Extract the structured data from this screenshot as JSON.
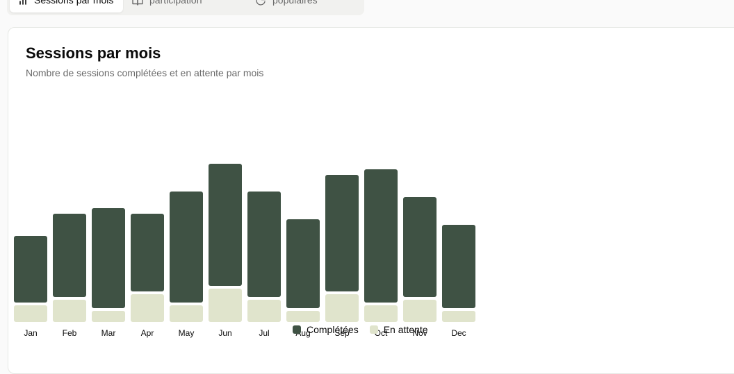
{
  "tabs": [
    {
      "label": "Sessions par mois",
      "icon": "bar-chart-icon",
      "active": true
    },
    {
      "label": "Taux de participation",
      "icon": "book-open-icon",
      "active": false
    },
    {
      "label": "Thèmes populaires",
      "icon": "pie-chart-icon",
      "active": false
    }
  ],
  "card": {
    "title": "Sessions par mois",
    "subtitle": "Nombre de sessions complétées et en attente par mois"
  },
  "colors": {
    "completed": "#3f5244",
    "pending": "#e0e4cc"
  },
  "chart_data": {
    "type": "bar",
    "stacked": true,
    "categories": [
      "Jan",
      "Feb",
      "Mar",
      "Apr",
      "May",
      "Jun",
      "Jul",
      "Aug",
      "Sep",
      "Oct",
      "Nov",
      "Dec"
    ],
    "series": [
      {
        "name": "Complétées",
        "values": [
          12,
          15,
          18,
          14,
          20,
          22,
          19,
          16,
          21,
          24,
          18,
          15
        ]
      },
      {
        "name": "En attente",
        "values": [
          3,
          4,
          2,
          5,
          3,
          6,
          4,
          2,
          5,
          3,
          4,
          2
        ]
      }
    ],
    "ylim": [
      0,
      30
    ],
    "grid": false,
    "legend_position": "bottom"
  }
}
